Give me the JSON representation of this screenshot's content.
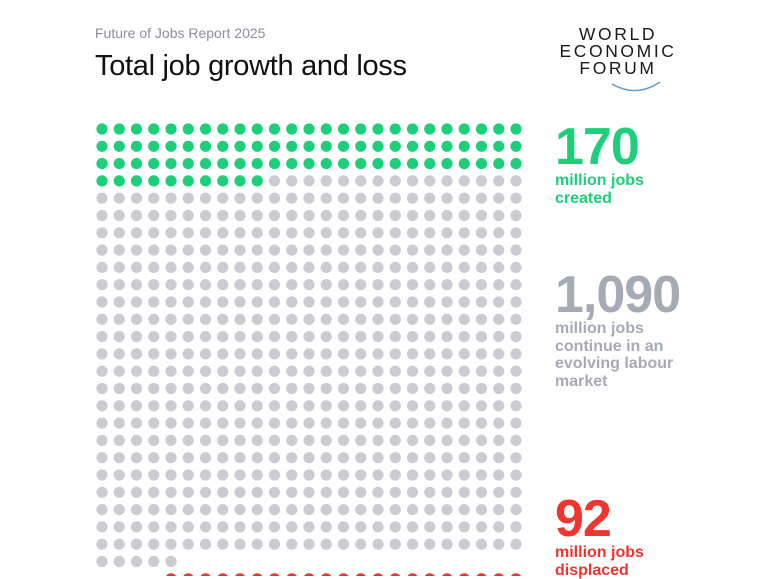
{
  "header": {
    "kicker": "Future of Jobs Report 2025",
    "title": "Total job growth and loss"
  },
  "logo": {
    "lines": [
      "WORLD",
      "ECONOMIC",
      "FORUM"
    ],
    "arc_color": "#5b9bd5"
  },
  "chart_data": {
    "type": "waffle",
    "unit": "million jobs",
    "columns": 25,
    "segments": [
      {
        "value": 170,
        "number": "170",
        "label": "million jobs created",
        "color": "#1ecf7a",
        "position": "top"
      },
      {
        "value": 1090,
        "number": "1,090",
        "label": "million jobs continue in an evolving labour market",
        "color": "#c9cdd2",
        "label_color": "#a4abb5",
        "position": "middle"
      },
      {
        "value": 92,
        "number": "92",
        "label": "million jobs displaced",
        "color": "#f0342f",
        "position": "bottom"
      }
    ]
  },
  "stats": {
    "created": {
      "number": "170",
      "desc_lines": [
        "million jobs",
        "created"
      ]
    },
    "continue": {
      "number": "1,090",
      "desc_lines": [
        "million jobs",
        "continue in an",
        "evolving labour",
        "market"
      ]
    },
    "displaced": {
      "number": "92",
      "desc_lines": [
        "million jobs",
        "displaced"
      ]
    }
  }
}
